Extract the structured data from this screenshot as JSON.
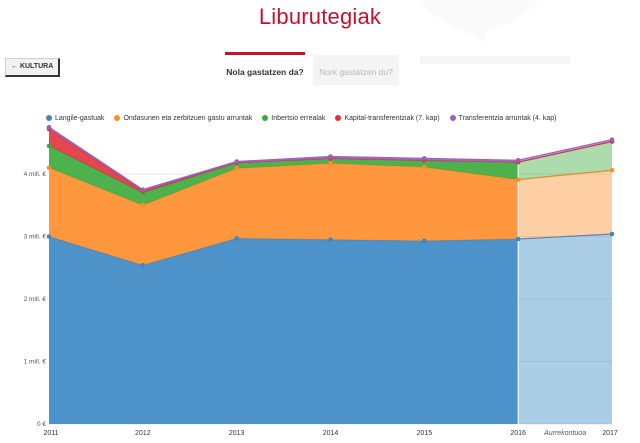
{
  "header": {
    "title": "Liburutegiak"
  },
  "nav": {
    "back_label": "← KULTURA"
  },
  "tabs": [
    {
      "label": "Nola gastatzen da?",
      "active": true
    },
    {
      "label": "Nork gastatzen du?",
      "active": false
    }
  ],
  "chart_data": {
    "type": "area",
    "stacked": true,
    "x": [
      "2011",
      "2012",
      "2013",
      "2014",
      "2015",
      "2016",
      "2017"
    ],
    "forecast_label": "Aurrekontuoa",
    "forecast_from": "2016",
    "y_ticks": [
      "0 €",
      "1 mill. €",
      "2 mill. €",
      "3 mill. €",
      "4 mill. €"
    ],
    "ylim": [
      0,
      4800000
    ],
    "grid": true,
    "legend_position": "top",
    "series": [
      {
        "name": "Langile-gastuak",
        "color": "#3a87c4",
        "values": [
          3000000,
          2540000,
          2970000,
          2950000,
          2930000,
          2960000,
          3040000
        ]
      },
      {
        "name": "Ondasunen eta zerbitzuen gastu arruntak",
        "color": "#ff8c2a",
        "values": [
          1100000,
          960000,
          1120000,
          1220000,
          1180000,
          950000,
          1020000
        ]
      },
      {
        "name": "Inbertsio errealak",
        "color": "#3aaa3a",
        "values": [
          350000,
          200000,
          90000,
          80000,
          110000,
          280000,
          460000
        ]
      },
      {
        "name": "Kapital-transferentziak (7. kap)",
        "color": "#e0323a",
        "values": [
          270000,
          30000,
          0,
          0,
          0,
          0,
          0
        ]
      },
      {
        "name": "Transferentzia arruntak (4. kap)",
        "color": "#9960c2",
        "values": [
          30000,
          20000,
          20000,
          30000,
          30000,
          30000,
          30000
        ]
      }
    ]
  }
}
